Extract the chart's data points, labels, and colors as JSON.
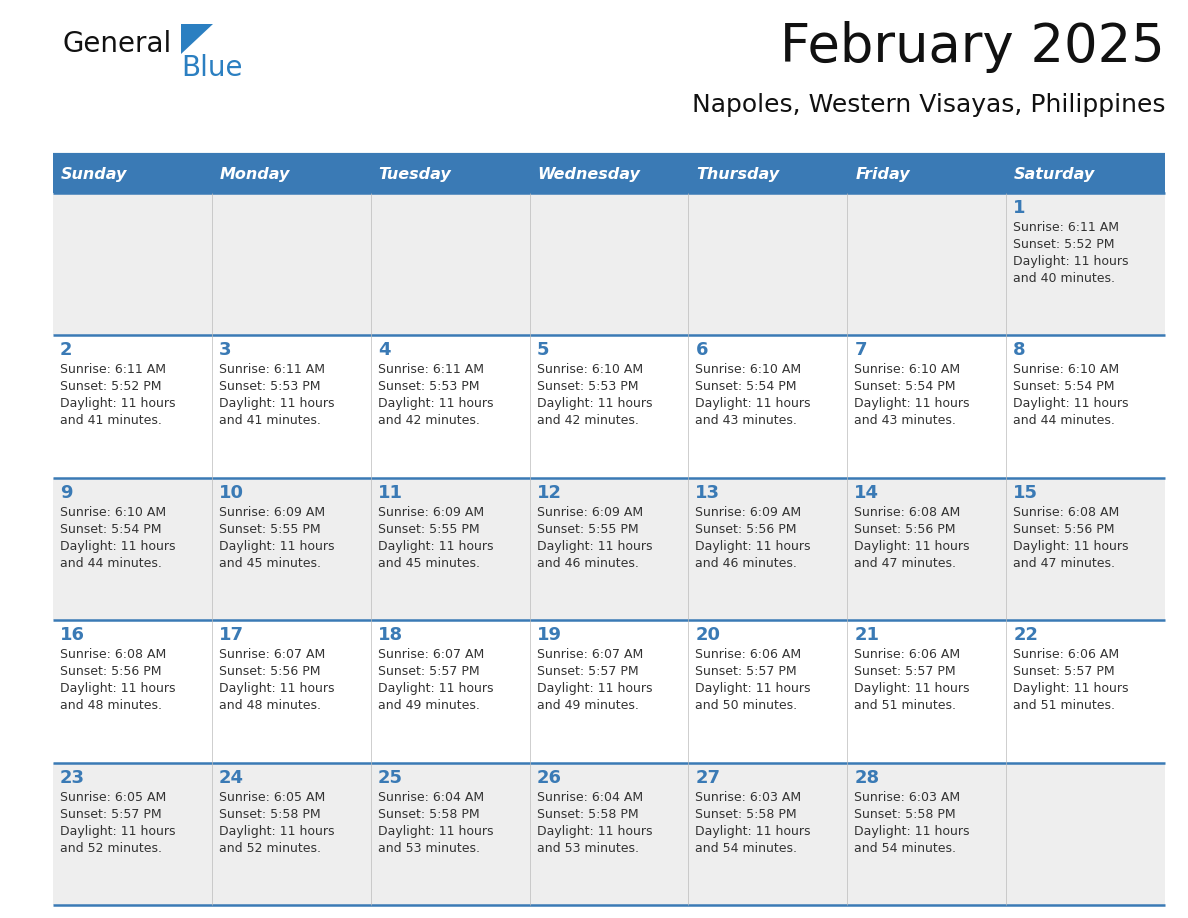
{
  "title": "February 2025",
  "subtitle": "Napoles, Western Visayas, Philippines",
  "header_bg_color": "#3a7ab5",
  "header_text_color": "#ffffff",
  "weekdays": [
    "Sunday",
    "Monday",
    "Tuesday",
    "Wednesday",
    "Thursday",
    "Friday",
    "Saturday"
  ],
  "day_number_color": "#3a7ab5",
  "cell_text_color": "#333333",
  "row_bg_odd": "#eeeeee",
  "row_bg_even": "#ffffff",
  "separator_color": "#3a7ab5",
  "logo_general_color": "#111111",
  "logo_blue_color": "#2b7fc1",
  "logo_triangle_color": "#2b7fc1",
  "calendar_data": [
    [
      {
        "day": null,
        "sunrise": null,
        "sunset": null,
        "daylight": null
      },
      {
        "day": null,
        "sunrise": null,
        "sunset": null,
        "daylight": null
      },
      {
        "day": null,
        "sunrise": null,
        "sunset": null,
        "daylight": null
      },
      {
        "day": null,
        "sunrise": null,
        "sunset": null,
        "daylight": null
      },
      {
        "day": null,
        "sunrise": null,
        "sunset": null,
        "daylight": null
      },
      {
        "day": null,
        "sunrise": null,
        "sunset": null,
        "daylight": null
      },
      {
        "day": 1,
        "sunrise": "6:11 AM",
        "sunset": "5:52 PM",
        "daylight_line1": "Daylight: 11 hours",
        "daylight_line2": "and 40 minutes."
      }
    ],
    [
      {
        "day": 2,
        "sunrise": "6:11 AM",
        "sunset": "5:52 PM",
        "daylight_line1": "Daylight: 11 hours",
        "daylight_line2": "and 41 minutes."
      },
      {
        "day": 3,
        "sunrise": "6:11 AM",
        "sunset": "5:53 PM",
        "daylight_line1": "Daylight: 11 hours",
        "daylight_line2": "and 41 minutes."
      },
      {
        "day": 4,
        "sunrise": "6:11 AM",
        "sunset": "5:53 PM",
        "daylight_line1": "Daylight: 11 hours",
        "daylight_line2": "and 42 minutes."
      },
      {
        "day": 5,
        "sunrise": "6:10 AM",
        "sunset": "5:53 PM",
        "daylight_line1": "Daylight: 11 hours",
        "daylight_line2": "and 42 minutes."
      },
      {
        "day": 6,
        "sunrise": "6:10 AM",
        "sunset": "5:54 PM",
        "daylight_line1": "Daylight: 11 hours",
        "daylight_line2": "and 43 minutes."
      },
      {
        "day": 7,
        "sunrise": "6:10 AM",
        "sunset": "5:54 PM",
        "daylight_line1": "Daylight: 11 hours",
        "daylight_line2": "and 43 minutes."
      },
      {
        "day": 8,
        "sunrise": "6:10 AM",
        "sunset": "5:54 PM",
        "daylight_line1": "Daylight: 11 hours",
        "daylight_line2": "and 44 minutes."
      }
    ],
    [
      {
        "day": 9,
        "sunrise": "6:10 AM",
        "sunset": "5:54 PM",
        "daylight_line1": "Daylight: 11 hours",
        "daylight_line2": "and 44 minutes."
      },
      {
        "day": 10,
        "sunrise": "6:09 AM",
        "sunset": "5:55 PM",
        "daylight_line1": "Daylight: 11 hours",
        "daylight_line2": "and 45 minutes."
      },
      {
        "day": 11,
        "sunrise": "6:09 AM",
        "sunset": "5:55 PM",
        "daylight_line1": "Daylight: 11 hours",
        "daylight_line2": "and 45 minutes."
      },
      {
        "day": 12,
        "sunrise": "6:09 AM",
        "sunset": "5:55 PM",
        "daylight_line1": "Daylight: 11 hours",
        "daylight_line2": "and 46 minutes."
      },
      {
        "day": 13,
        "sunrise": "6:09 AM",
        "sunset": "5:56 PM",
        "daylight_line1": "Daylight: 11 hours",
        "daylight_line2": "and 46 minutes."
      },
      {
        "day": 14,
        "sunrise": "6:08 AM",
        "sunset": "5:56 PM",
        "daylight_line1": "Daylight: 11 hours",
        "daylight_line2": "and 47 minutes."
      },
      {
        "day": 15,
        "sunrise": "6:08 AM",
        "sunset": "5:56 PM",
        "daylight_line1": "Daylight: 11 hours",
        "daylight_line2": "and 47 minutes."
      }
    ],
    [
      {
        "day": 16,
        "sunrise": "6:08 AM",
        "sunset": "5:56 PM",
        "daylight_line1": "Daylight: 11 hours",
        "daylight_line2": "and 48 minutes."
      },
      {
        "day": 17,
        "sunrise": "6:07 AM",
        "sunset": "5:56 PM",
        "daylight_line1": "Daylight: 11 hours",
        "daylight_line2": "and 48 minutes."
      },
      {
        "day": 18,
        "sunrise": "6:07 AM",
        "sunset": "5:57 PM",
        "daylight_line1": "Daylight: 11 hours",
        "daylight_line2": "and 49 minutes."
      },
      {
        "day": 19,
        "sunrise": "6:07 AM",
        "sunset": "5:57 PM",
        "daylight_line1": "Daylight: 11 hours",
        "daylight_line2": "and 49 minutes."
      },
      {
        "day": 20,
        "sunrise": "6:06 AM",
        "sunset": "5:57 PM",
        "daylight_line1": "Daylight: 11 hours",
        "daylight_line2": "and 50 minutes."
      },
      {
        "day": 21,
        "sunrise": "6:06 AM",
        "sunset": "5:57 PM",
        "daylight_line1": "Daylight: 11 hours",
        "daylight_line2": "and 51 minutes."
      },
      {
        "day": 22,
        "sunrise": "6:06 AM",
        "sunset": "5:57 PM",
        "daylight_line1": "Daylight: 11 hours",
        "daylight_line2": "and 51 minutes."
      }
    ],
    [
      {
        "day": 23,
        "sunrise": "6:05 AM",
        "sunset": "5:57 PM",
        "daylight_line1": "Daylight: 11 hours",
        "daylight_line2": "and 52 minutes."
      },
      {
        "day": 24,
        "sunrise": "6:05 AM",
        "sunset": "5:58 PM",
        "daylight_line1": "Daylight: 11 hours",
        "daylight_line2": "and 52 minutes."
      },
      {
        "day": 25,
        "sunrise": "6:04 AM",
        "sunset": "5:58 PM",
        "daylight_line1": "Daylight: 11 hours",
        "daylight_line2": "and 53 minutes."
      },
      {
        "day": 26,
        "sunrise": "6:04 AM",
        "sunset": "5:58 PM",
        "daylight_line1": "Daylight: 11 hours",
        "daylight_line2": "and 53 minutes."
      },
      {
        "day": 27,
        "sunrise": "6:03 AM",
        "sunset": "5:58 PM",
        "daylight_line1": "Daylight: 11 hours",
        "daylight_line2": "and 54 minutes."
      },
      {
        "day": 28,
        "sunrise": "6:03 AM",
        "sunset": "5:58 PM",
        "daylight_line1": "Daylight: 11 hours",
        "daylight_line2": "and 54 minutes."
      },
      {
        "day": null,
        "sunrise": null,
        "sunset": null,
        "daylight_line1": null,
        "daylight_line2": null
      }
    ]
  ]
}
